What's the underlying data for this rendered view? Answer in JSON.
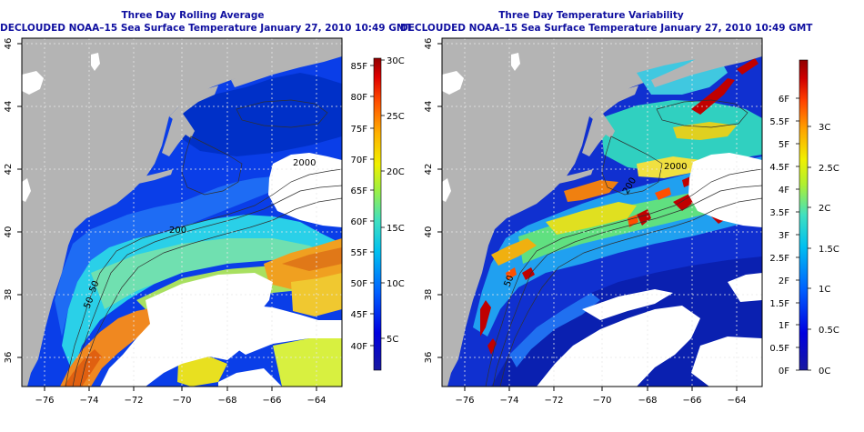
{
  "left_panel": {
    "title": "Three Day Rolling Average",
    "subtitle": "DECLOUDED NOAA–15 Sea Surface Temperature January 27, 2010 10:49 GMT",
    "lon_ticks": [
      "−76",
      "−74",
      "−72",
      "−70",
      "−68",
      "−66",
      "−64"
    ],
    "lat_ticks": [
      "36",
      "38",
      "40",
      "42",
      "44",
      "46"
    ],
    "contour_labels": [
      "2000",
      "200",
      "50",
      "50"
    ],
    "colorbar": {
      "fahrenheit_labels": [
        "40F",
        "45F",
        "50F",
        "55F",
        "60F",
        "65F",
        "70F",
        "75F",
        "80F",
        "85F"
      ],
      "celsius_labels": [
        "5C",
        "10C",
        "15C",
        "20C",
        "25C",
        "30C"
      ]
    }
  },
  "right_panel": {
    "title": "Three Day Temperature Variability",
    "subtitle": "DECLOUDED NOAA–15 Sea Surface Temperature January 27, 2010 10:49 GMT",
    "lon_ticks": [
      "−76",
      "−74",
      "−72",
      "−70",
      "−68",
      "−66",
      "−64"
    ],
    "lat_ticks": [
      "36",
      "38",
      "40",
      "42",
      "44",
      "46"
    ],
    "contour_labels": [
      "2000",
      "200",
      "50"
    ],
    "colorbar": {
      "fahrenheit_labels": [
        "0F",
        "0.5F",
        "1F",
        "1.5F",
        "2F",
        "2.5F",
        "3F",
        "3.5F",
        "4F",
        "4.5F",
        "5F",
        "5.5F",
        "6F"
      ],
      "celsius_labels": [
        "0C",
        "0.5C",
        "1C",
        "1.5C",
        "2C",
        "2.5C",
        "3C"
      ]
    }
  },
  "colors": {
    "land": "#b4b4b4",
    "cloud": "#ffffff",
    "title": "#1010a0"
  }
}
